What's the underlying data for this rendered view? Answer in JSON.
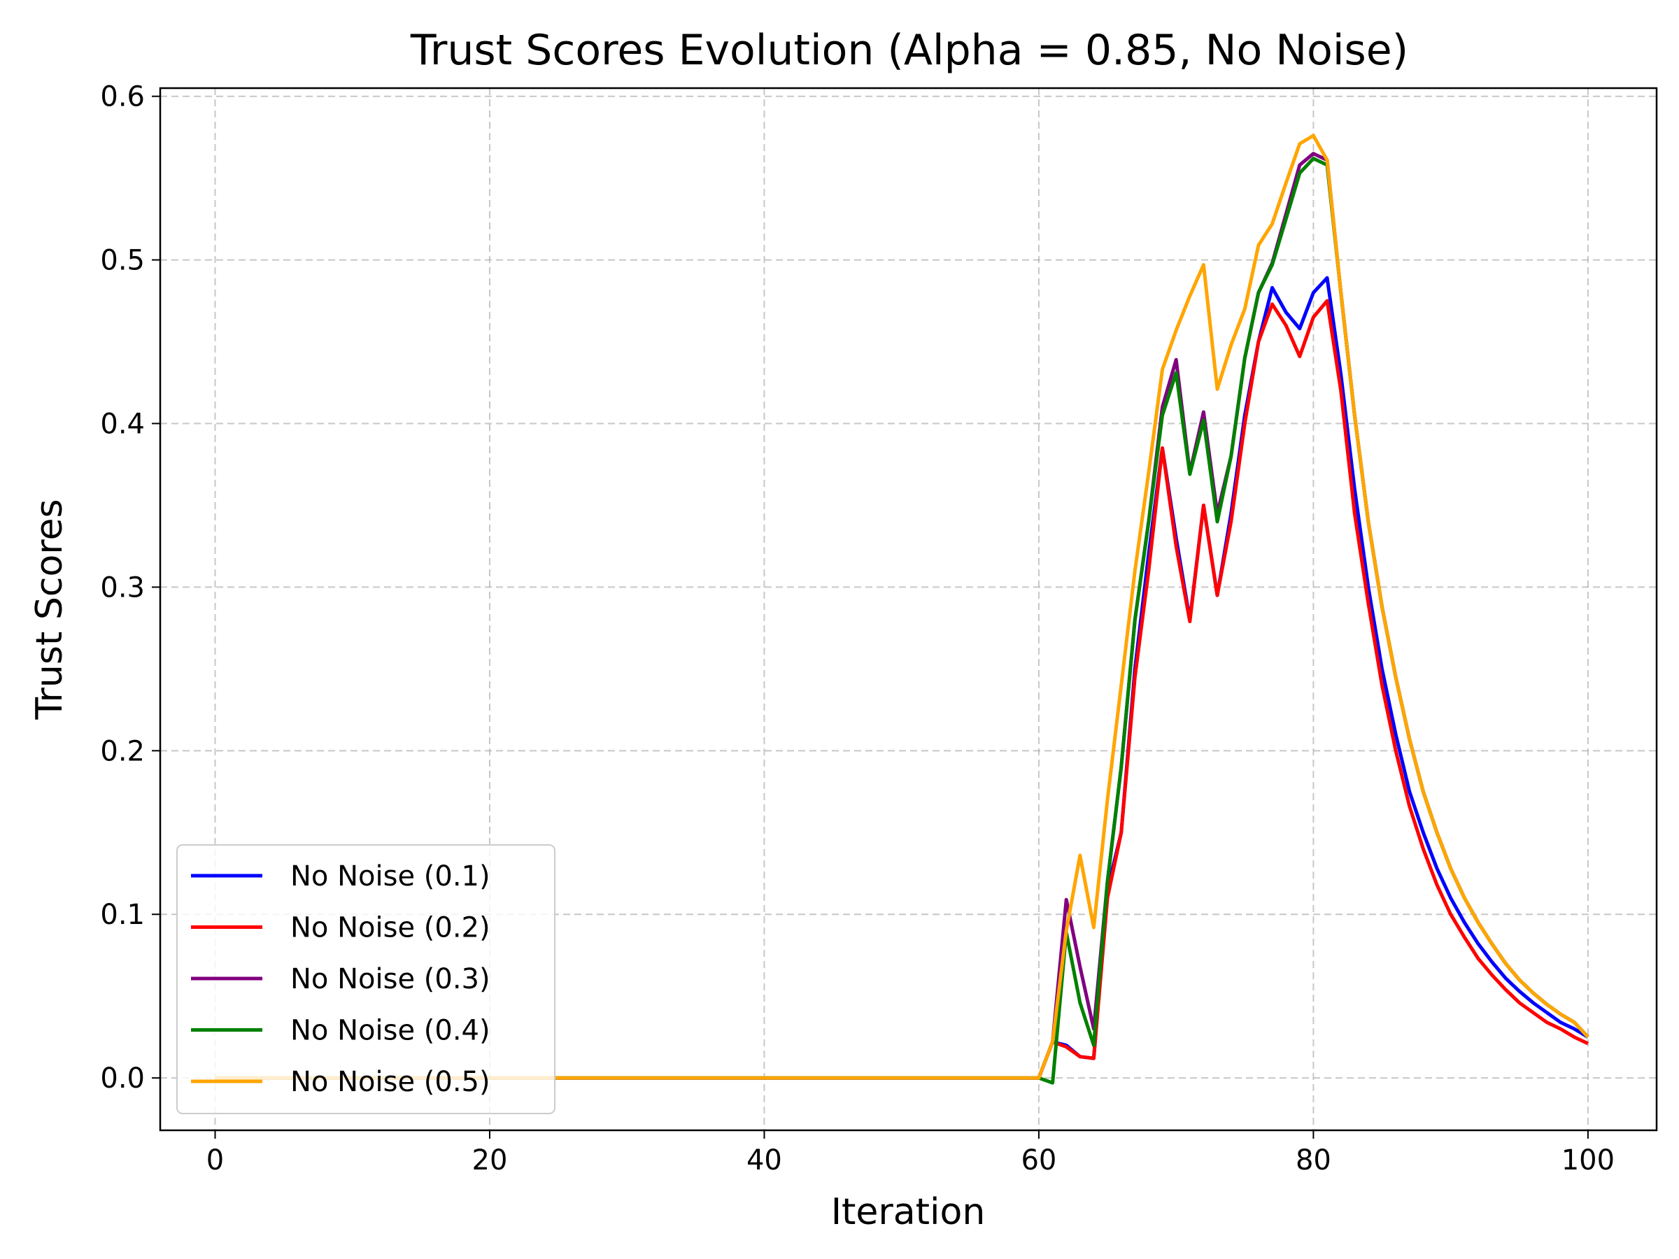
{
  "chart_data": {
    "type": "line",
    "title": "Trust Scores Evolution (Alpha = 0.85, No Noise)",
    "xlabel": "Iteration",
    "ylabel": "Trust Scores",
    "xlim": [
      -4,
      105
    ],
    "ylim": [
      -0.032,
      0.605
    ],
    "xticks": [
      0,
      20,
      40,
      60,
      80,
      100
    ],
    "xtick_labels": [
      "0",
      "20",
      "40",
      "60",
      "80",
      "100"
    ],
    "yticks": [
      0.0,
      0.1,
      0.2,
      0.3,
      0.4,
      0.5,
      0.6
    ],
    "ytick_labels": [
      "0.0",
      "0.1",
      "0.2",
      "0.3",
      "0.4",
      "0.5",
      "0.6"
    ],
    "grid": true,
    "legend_position": "lower-left",
    "x": [
      60,
      61,
      62,
      63,
      64,
      65,
      66,
      67,
      68,
      69,
      70,
      71,
      72,
      73,
      74,
      75,
      76,
      77,
      78,
      79,
      80,
      81,
      82,
      83,
      84,
      85,
      86,
      87,
      88,
      89,
      90,
      91,
      92,
      93,
      94,
      95,
      96,
      97,
      98,
      99,
      100
    ],
    "series": [
      {
        "name": "No Noise (0.1)",
        "color": "#0000ff",
        "values": [
          0,
          0.022,
          0.02,
          0.013,
          0.012,
          0.115,
          0.15,
          0.25,
          0.32,
          0.385,
          0.33,
          0.28,
          0.35,
          0.295,
          0.345,
          0.405,
          0.45,
          0.483,
          0.468,
          0.458,
          0.48,
          0.489,
          0.43,
          0.36,
          0.3,
          0.25,
          0.21,
          0.175,
          0.15,
          0.128,
          0.11,
          0.095,
          0.082,
          0.071,
          0.061,
          0.053,
          0.046,
          0.04,
          0.034,
          0.03,
          0.025
        ]
      },
      {
        "name": "No Noise (0.2)",
        "color": "#ff0000",
        "values": [
          0,
          0.022,
          0.019,
          0.013,
          0.012,
          0.11,
          0.15,
          0.245,
          0.31,
          0.385,
          0.325,
          0.279,
          0.35,
          0.295,
          0.34,
          0.4,
          0.45,
          0.473,
          0.46,
          0.441,
          0.465,
          0.475,
          0.42,
          0.345,
          0.29,
          0.24,
          0.2,
          0.166,
          0.14,
          0.118,
          0.1,
          0.086,
          0.073,
          0.063,
          0.054,
          0.046,
          0.04,
          0.034,
          0.03,
          0.025,
          0.021
        ]
      },
      {
        "name": "No Noise (0.3)",
        "color": "#800080",
        "values": [
          0,
          0.022,
          0.109,
          0.068,
          0.03,
          0.12,
          0.19,
          0.28,
          0.34,
          0.41,
          0.439,
          0.37,
          0.407,
          0.345,
          0.38,
          0.44,
          0.48,
          0.498,
          0.528,
          0.558,
          0.565,
          0.561,
          0.48,
          0.405,
          0.34,
          0.288,
          0.245,
          0.207,
          0.175,
          0.15,
          0.128,
          0.11,
          0.095,
          0.082,
          0.07,
          0.06,
          0.052,
          0.045,
          0.039,
          0.034,
          0.025
        ]
      },
      {
        "name": "No Noise (0.4)",
        "color": "#008000",
        "values": [
          0,
          -0.003,
          0.089,
          0.046,
          0.02,
          0.12,
          0.19,
          0.28,
          0.34,
          0.405,
          0.431,
          0.369,
          0.402,
          0.34,
          0.38,
          0.44,
          0.48,
          0.497,
          0.525,
          0.553,
          0.562,
          0.558,
          0.48,
          0.405,
          0.34,
          0.288,
          0.245,
          0.207,
          0.175,
          0.15,
          0.128,
          0.11,
          0.095,
          0.082,
          0.07,
          0.06,
          0.052,
          0.045,
          0.039,
          0.034,
          0.025
        ]
      },
      {
        "name": "No Noise (0.5)",
        "color": "#ffa500",
        "values": [
          0,
          0.022,
          0.09,
          0.136,
          0.092,
          0.17,
          0.24,
          0.31,
          0.37,
          0.433,
          0.457,
          0.478,
          0.497,
          0.421,
          0.448,
          0.47,
          0.509,
          0.522,
          0.547,
          0.571,
          0.576,
          0.561,
          0.48,
          0.405,
          0.34,
          0.288,
          0.245,
          0.207,
          0.175,
          0.15,
          0.128,
          0.11,
          0.095,
          0.082,
          0.07,
          0.06,
          0.052,
          0.045,
          0.039,
          0.034,
          0.025
        ]
      }
    ]
  }
}
